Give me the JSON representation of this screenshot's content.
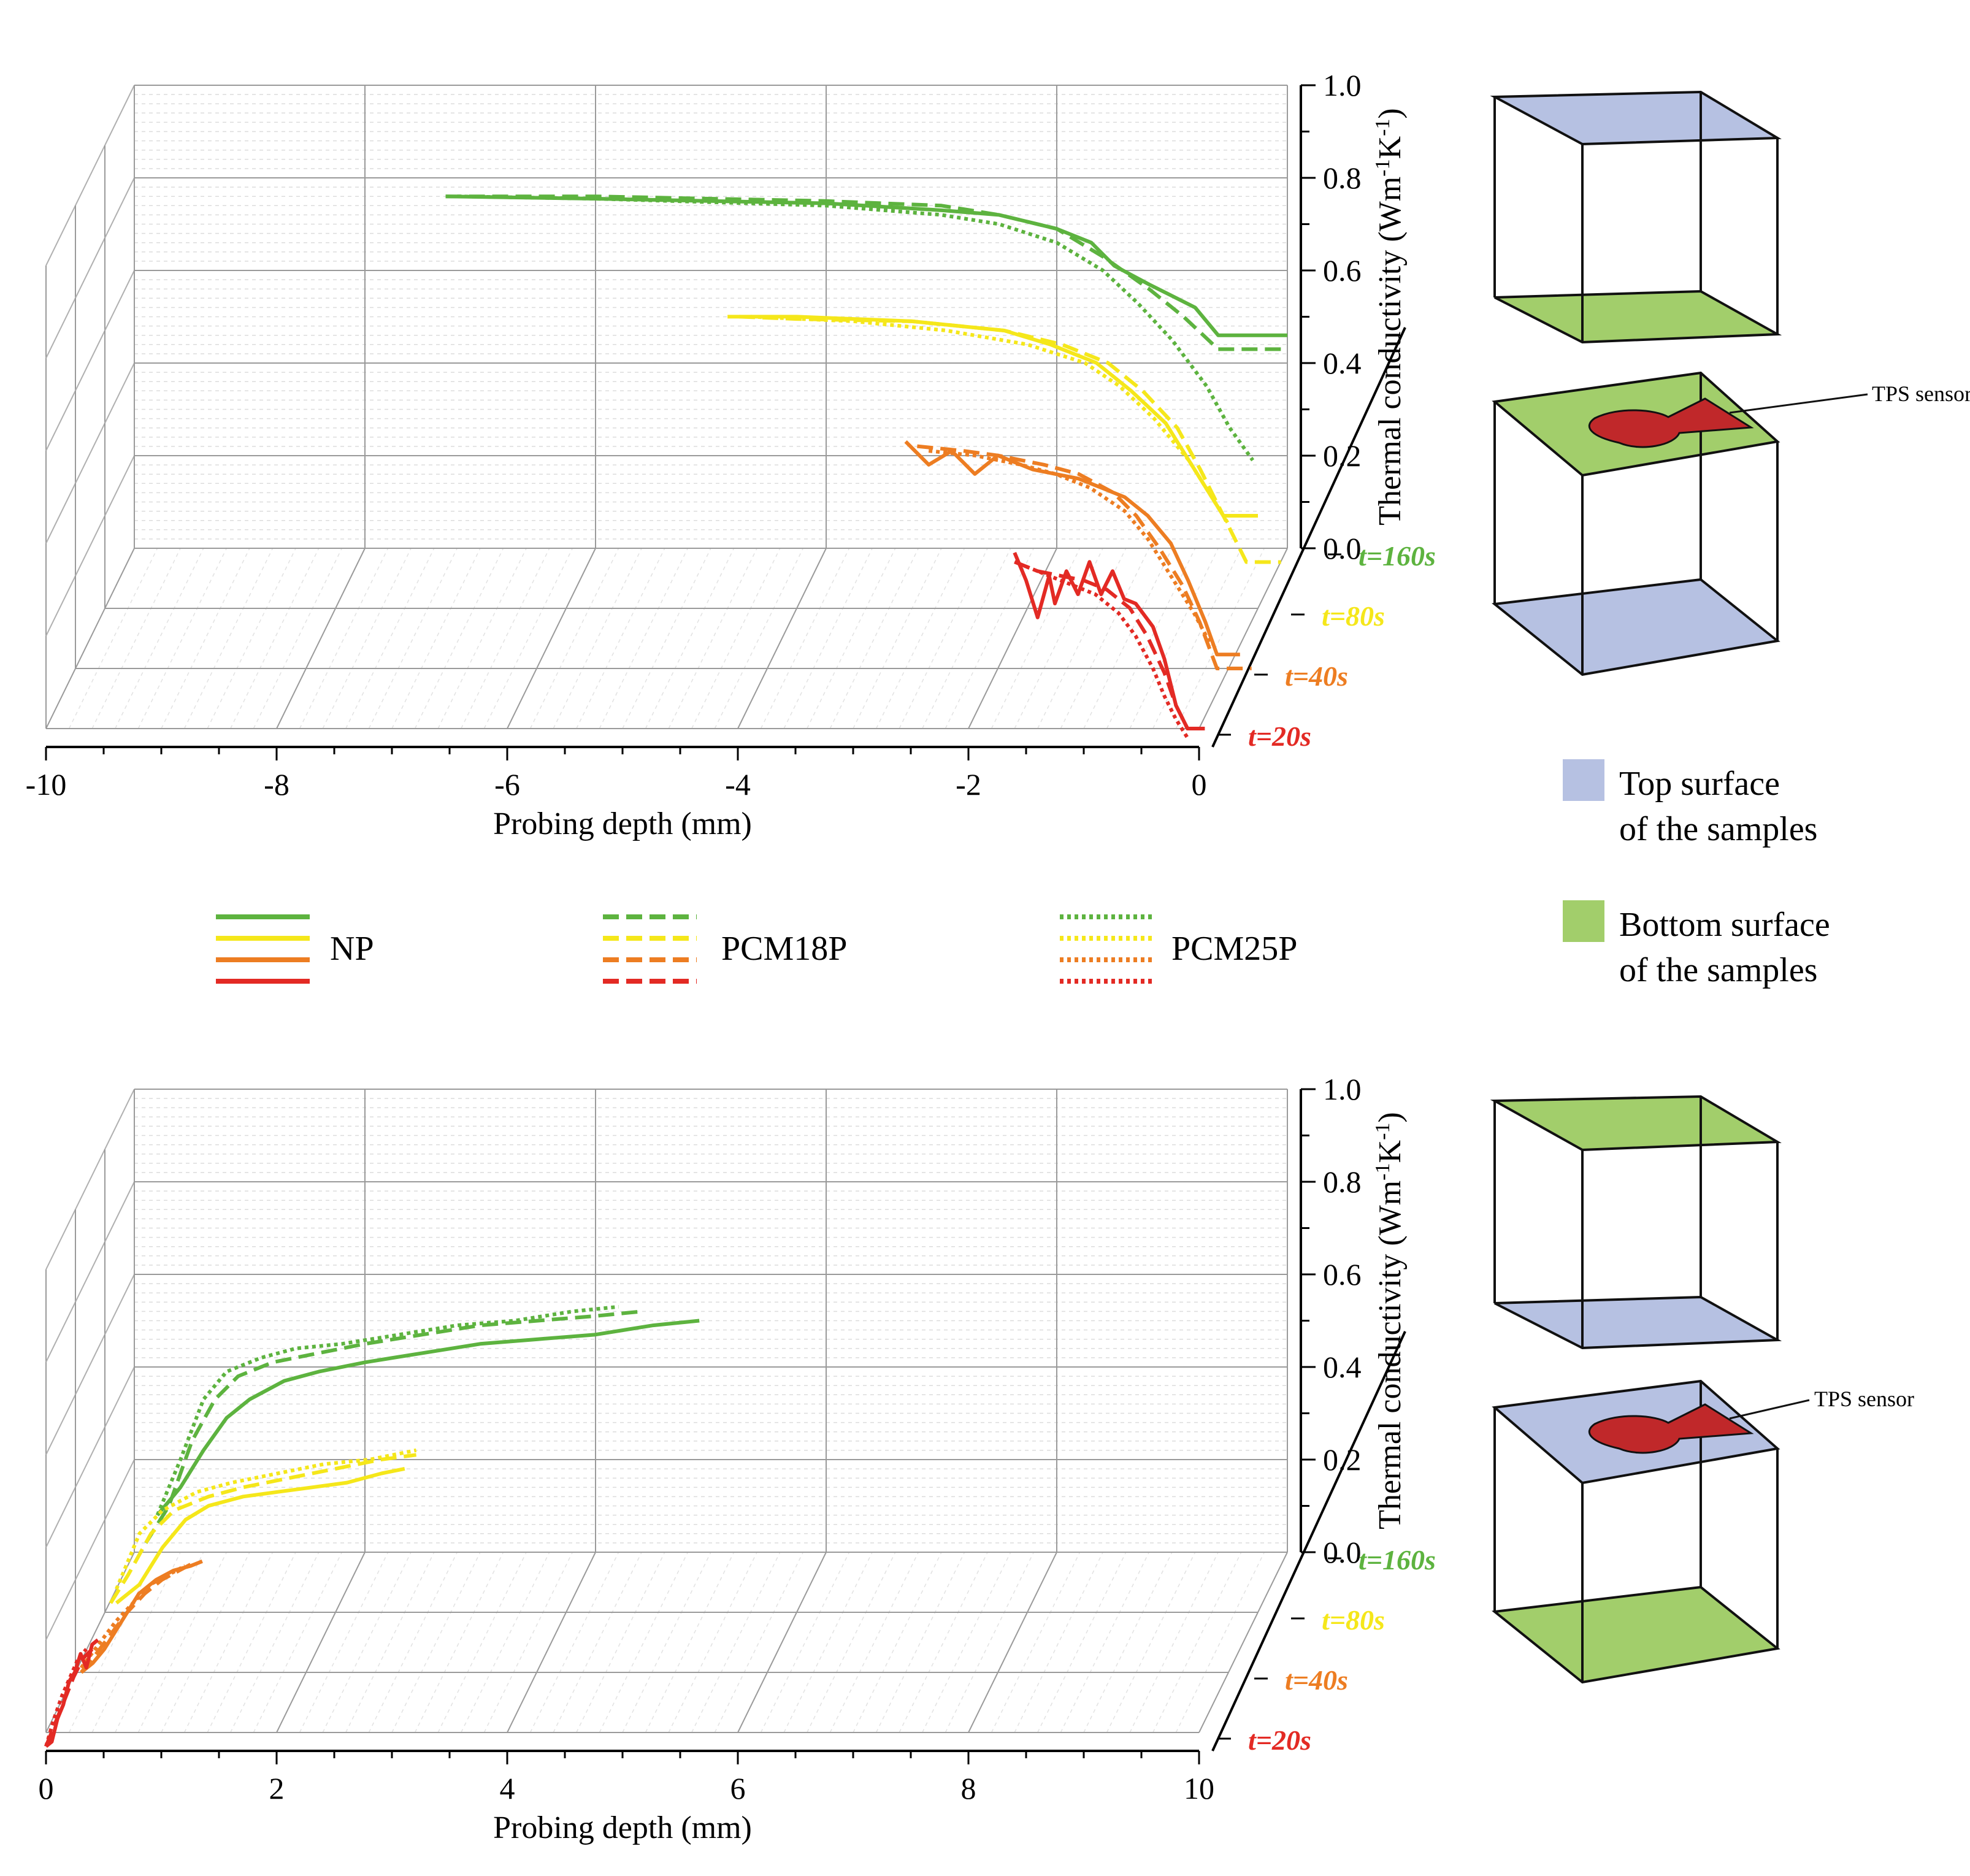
{
  "colors": {
    "t160": "#5db33f",
    "t80": "#f5e71a",
    "t40": "#ed7d22",
    "t20": "#e32a24",
    "top_surface": "#b6c1e2",
    "bottom_surface": "#a2ce6b",
    "sensor": "#c0282a"
  },
  "legend": {
    "series_labels": [
      "NP",
      "PCM18P",
      "PCM25P"
    ],
    "surfaces": [
      {
        "line1": "Top surface",
        "line2": "of  the samples",
        "color": "#b6c1e2"
      },
      {
        "line1": "Bottom surface",
        "line2": "of the samples",
        "color": "#a2ce6b"
      }
    ]
  },
  "sensor_label": "TPS sensor",
  "chart_data": [
    {
      "type": "line",
      "panel": "top",
      "xlabel": "Probing depth (mm)",
      "ylabel": "Thermal conductivity (Wm",
      "ylabel_sup1": "-1",
      "ylabel_mid": "K",
      "ylabel_sup2": "-1",
      "ylabel_end": ")",
      "xlim": [
        -10,
        0
      ],
      "ylim": [
        0,
        1
      ],
      "xticks": [
        "-10",
        "-8",
        "-6",
        "-4",
        "-2",
        "0"
      ],
      "yticks": [
        "0.0",
        "0.2",
        "0.4",
        "0.6",
        "0.8",
        "1.0"
      ],
      "time_labels": [
        "t=160s",
        "t=80s",
        "t=40s",
        "t=20s"
      ],
      "series": [
        {
          "name": "NP",
          "time": "t=160s",
          "style": "solid",
          "x": [
            -7.3,
            -6,
            -5,
            -4,
            -3,
            -2.5,
            -2,
            -1.7,
            -1.5,
            -1.2,
            -0.8,
            -0.6,
            0
          ],
          "y": [
            0.76,
            0.755,
            0.75,
            0.745,
            0.73,
            0.72,
            0.69,
            0.66,
            0.61,
            0.57,
            0.52,
            0.46,
            0.46
          ]
        },
        {
          "name": "PCM18P",
          "time": "t=160s",
          "style": "dashed",
          "x": [
            -7.3,
            -6,
            -4,
            -3,
            -2.5,
            -2,
            -1.6,
            -1.2,
            -0.9,
            -0.6,
            0
          ],
          "y": [
            0.76,
            0.76,
            0.75,
            0.74,
            0.72,
            0.69,
            0.63,
            0.56,
            0.5,
            0.43,
            0.43
          ]
        },
        {
          "name": "PCM25P",
          "time": "t=160s",
          "style": "dotted",
          "x": [
            -7.2,
            -6,
            -4,
            -3,
            -2.5,
            -2,
            -1.6,
            -1.3,
            -1,
            -0.7,
            -0.5,
            -0.3
          ],
          "y": [
            0.76,
            0.755,
            0.74,
            0.72,
            0.7,
            0.66,
            0.6,
            0.53,
            0.45,
            0.35,
            0.26,
            0.19
          ]
        },
        {
          "name": "NP",
          "time": "t=80s",
          "style": "solid",
          "x": [
            -4.6,
            -4,
            -3,
            -2.2,
            -1.8,
            -1.4,
            -1.1,
            -0.8,
            -0.6,
            -0.4,
            -0.3,
            0
          ],
          "y": [
            0.63,
            0.63,
            0.62,
            0.6,
            0.57,
            0.53,
            0.47,
            0.4,
            0.32,
            0.24,
            0.2,
            0.2
          ]
        },
        {
          "name": "PCM18P",
          "time": "t=80s",
          "style": "dashed",
          "x": [
            -4.5,
            -4,
            -3,
            -2.2,
            -1.7,
            -1.3,
            -1,
            -0.7,
            -0.5,
            -0.3,
            -0.1,
            0.2
          ],
          "y": [
            0.63,
            0.625,
            0.62,
            0.6,
            0.57,
            0.53,
            0.47,
            0.39,
            0.3,
            0.2,
            0.1,
            0.1
          ]
        },
        {
          "name": "PCM25P",
          "time": "t=80s",
          "style": "dotted",
          "x": [
            -4.4,
            -3.5,
            -2.7,
            -2,
            -1.5,
            -1.2,
            -0.9,
            -0.6,
            -0.4,
            -0.25
          ],
          "y": [
            0.63,
            0.62,
            0.6,
            0.57,
            0.53,
            0.48,
            0.41,
            0.32,
            0.24,
            0.18
          ]
        },
        {
          "name": "NP",
          "time": "t=40s",
          "style": "solid",
          "x": [
            -2.8,
            -2.6,
            -2.4,
            -2.2,
            -2,
            -1.7,
            -1.5,
            -1.3,
            -1.1,
            -0.9,
            -0.7,
            -0.5,
            -0.35,
            -0.2,
            -0.1,
            0.1
          ],
          "y": [
            0.49,
            0.44,
            0.47,
            0.42,
            0.46,
            0.43,
            0.42,
            0.41,
            0.39,
            0.37,
            0.33,
            0.27,
            0.19,
            0.1,
            0.03,
            0.03
          ]
        },
        {
          "name": "PCM18P",
          "time": "t=40s",
          "style": "dashed",
          "x": [
            -2.7,
            -2.3,
            -2,
            -1.6,
            -1.3,
            -1,
            -0.8,
            -0.6,
            -0.4,
            -0.25,
            -0.1,
            0.2
          ],
          "y": [
            0.48,
            0.47,
            0.46,
            0.44,
            0.42,
            0.38,
            0.33,
            0.26,
            0.18,
            0.1,
            0.0,
            0.0
          ]
        },
        {
          "name": "PCM25P",
          "time": "t=40s",
          "style": "dotted",
          "x": [
            -2.6,
            -2.2,
            -1.8,
            -1.5,
            -1.2,
            -0.9,
            -0.7,
            -0.5,
            -0.3,
            -0.15
          ],
          "y": [
            0.47,
            0.46,
            0.44,
            0.42,
            0.39,
            0.34,
            0.28,
            0.2,
            0.12,
            0.05
          ]
        },
        {
          "name": "NP",
          "time": "t=20s",
          "style": "solid",
          "x": [
            -1.6,
            -1.5,
            -1.4,
            -1.3,
            -1.25,
            -1.15,
            -1.05,
            -0.95,
            -0.85,
            -0.75,
            -0.65,
            -0.55,
            -0.4,
            -0.3,
            -0.2,
            -0.1,
            0.05
          ],
          "y": [
            0.38,
            0.32,
            0.24,
            0.33,
            0.27,
            0.34,
            0.29,
            0.36,
            0.29,
            0.34,
            0.28,
            0.27,
            0.22,
            0.15,
            0.05,
            0.0,
            0.0
          ]
        },
        {
          "name": "PCM18P",
          "time": "t=20s",
          "style": "dashed",
          "x": [
            -1.6,
            -1.4,
            -1.2,
            -1,
            -0.8,
            -0.6,
            -0.45,
            -0.3,
            -0.2,
            -0.1,
            0.05
          ],
          "y": [
            0.36,
            0.34,
            0.33,
            0.32,
            0.3,
            0.26,
            0.2,
            0.12,
            0.05,
            0.0,
            0.0
          ]
        },
        {
          "name": "PCM25P",
          "time": "t=20s",
          "style": "dotted",
          "x": [
            -1.5,
            -1.3,
            -1.1,
            -0.9,
            -0.7,
            -0.55,
            -0.4,
            -0.3,
            -0.2,
            -0.1
          ],
          "y": [
            0.35,
            0.33,
            0.31,
            0.29,
            0.25,
            0.2,
            0.13,
            0.07,
            0.02,
            -0.02
          ]
        }
      ]
    },
    {
      "type": "line",
      "panel": "bottom",
      "xlabel": "Probing depth (mm)",
      "ylabel": "Thermal conductivity (Wm",
      "ylabel_sup1": "-1",
      "ylabel_mid": "K",
      "ylabel_sup2": "-1",
      "ylabel_end": ")",
      "xlim": [
        0,
        10
      ],
      "ylim": [
        0,
        1
      ],
      "xticks": [
        "0",
        "2",
        "4",
        "6",
        "8",
        "10"
      ],
      "yticks": [
        "0.0",
        "0.2",
        "0.4",
        "0.6",
        "0.8",
        "1.0"
      ],
      "time_labels": [
        "t=160s",
        "t=80s",
        "t=40s",
        "t=20s"
      ],
      "series": [
        {
          "name": "NP",
          "time": "t=160s",
          "style": "solid",
          "x": [
            0.2,
            0.4,
            0.6,
            0.8,
            1.0,
            1.3,
            1.6,
            2.0,
            2.5,
            3.0,
            3.5,
            4.0,
            4.5,
            4.9
          ],
          "y": [
            0.08,
            0.14,
            0.22,
            0.29,
            0.33,
            0.37,
            0.39,
            0.41,
            0.43,
            0.45,
            0.46,
            0.47,
            0.49,
            0.5
          ]
        },
        {
          "name": "PCM18P",
          "time": "t=160s",
          "style": "dashed",
          "x": [
            0.1,
            0.3,
            0.5,
            0.7,
            0.9,
            1.2,
            1.6,
            2.0,
            2.5,
            3.0,
            3.5,
            4.0,
            4.4
          ],
          "y": [
            0.02,
            0.1,
            0.24,
            0.33,
            0.38,
            0.41,
            0.43,
            0.45,
            0.47,
            0.49,
            0.5,
            0.51,
            0.52
          ]
        },
        {
          "name": "PCM25P",
          "time": "t=160s",
          "style": "dotted",
          "x": [
            0.2,
            0.4,
            0.6,
            0.8,
            1.1,
            1.4,
            1.8,
            2.3,
            2.8,
            3.3,
            3.8,
            4.2
          ],
          "y": [
            0.08,
            0.2,
            0.33,
            0.39,
            0.42,
            0.44,
            0.45,
            0.47,
            0.49,
            0.5,
            0.52,
            0.53
          ]
        },
        {
          "name": "NP",
          "time": "t=80s",
          "style": "solid",
          "x": [
            0.1,
            0.3,
            0.5,
            0.7,
            0.9,
            1.2,
            1.5,
            1.8,
            2.1,
            2.4,
            2.6
          ],
          "y": [
            0.02,
            0.06,
            0.14,
            0.2,
            0.23,
            0.25,
            0.26,
            0.27,
            0.28,
            0.3,
            0.31
          ]
        },
        {
          "name": "PCM18P",
          "time": "t=80s",
          "style": "dashed",
          "x": [
            0.05,
            0.2,
            0.4,
            0.6,
            0.9,
            1.2,
            1.6,
            2.0,
            2.4,
            2.7
          ],
          "y": [
            0.02,
            0.08,
            0.17,
            0.22,
            0.25,
            0.27,
            0.29,
            0.31,
            0.33,
            0.34
          ]
        },
        {
          "name": "PCM25P",
          "time": "t=80s",
          "style": "dotted",
          "x": [
            0.1,
            0.3,
            0.5,
            0.8,
            1.1,
            1.5,
            1.9,
            2.3,
            2.7
          ],
          "y": [
            0.05,
            0.17,
            0.22,
            0.26,
            0.28,
            0.3,
            0.32,
            0.33,
            0.35
          ]
        },
        {
          "name": "NP",
          "time": "t=40s",
          "style": "solid",
          "x": [
            0.05,
            0.15,
            0.25,
            0.35,
            0.45,
            0.55,
            0.7,
            0.85,
            1.0,
            1.1
          ],
          "y": [
            0.0,
            0.02,
            0.05,
            0.09,
            0.13,
            0.17,
            0.2,
            0.22,
            0.23,
            0.24
          ]
        },
        {
          "name": "PCM18P",
          "time": "t=40s",
          "style": "dashed",
          "x": [
            0.05,
            0.15,
            0.3,
            0.45,
            0.6,
            0.75,
            0.9,
            1.05
          ],
          "y": [
            0.0,
            0.03,
            0.08,
            0.13,
            0.17,
            0.2,
            0.22,
            0.24
          ]
        },
        {
          "name": "PCM25P",
          "time": "t=40s",
          "style": "dotted",
          "x": [
            0.05,
            0.2,
            0.35,
            0.5,
            0.65,
            0.8,
            0.95
          ],
          "y": [
            0.01,
            0.06,
            0.11,
            0.15,
            0.19,
            0.21,
            0.23
          ]
        },
        {
          "name": "NP",
          "time": "t=20s",
          "style": "solid",
          "x": [
            0.0,
            0.05,
            0.1,
            0.15,
            0.2,
            0.25,
            0.3,
            0.35,
            0.4,
            0.45
          ],
          "y": [
            -0.03,
            -0.02,
            0.03,
            0.06,
            0.11,
            0.13,
            0.17,
            0.14,
            0.19,
            0.2
          ]
        },
        {
          "name": "PCM18P",
          "time": "t=20s",
          "style": "dashed",
          "x": [
            0.0,
            0.08,
            0.16,
            0.24,
            0.32,
            0.4
          ],
          "y": [
            -0.03,
            0.02,
            0.07,
            0.12,
            0.16,
            0.18
          ]
        },
        {
          "name": "PCM25P",
          "time": "t=20s",
          "style": "dotted",
          "x": [
            0.0,
            0.07,
            0.14,
            0.21,
            0.28,
            0.35
          ],
          "y": [
            -0.03,
            0.03,
            0.08,
            0.12,
            0.16,
            0.18
          ]
        }
      ]
    }
  ]
}
